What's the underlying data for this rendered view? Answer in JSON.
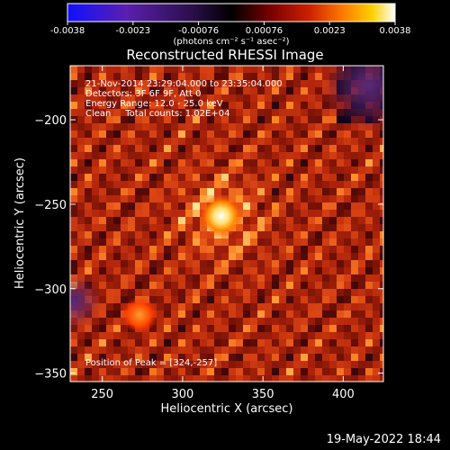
{
  "chart_data": {
    "type": "heatmap",
    "title": "Reconstructed RHESSI Image",
    "xlabel": "Heliocentric X (arcsec)",
    "ylabel": "Heliocentric Y (arcsec)",
    "xlim": [
      230,
      425
    ],
    "ylim": [
      -355,
      -168
    ],
    "xticks": [
      250,
      300,
      350,
      400
    ],
    "yticks": [
      -200,
      -250,
      -300,
      -350
    ],
    "colorbar": {
      "ticks": [
        "-0.0038",
        "-0.0023",
        "-0.00076",
        "0.00076",
        "0.0023",
        "0.0038"
      ],
      "range": [
        -0.0038,
        0.0038
      ],
      "units_line": "(photons cm⁻² s⁻¹ asec⁻²)",
      "colormap": [
        "#1010ff",
        "#5a1fae",
        "#2a0f4a",
        "#000000",
        "#7a0000",
        "#cc2200",
        "#ff7a00",
        "#ffd000",
        "#ffffff"
      ]
    },
    "peak": {
      "x": 324,
      "y": -257
    },
    "annotations": [
      "21-Nov-2014 23:29:04.000 to 23:35:04.000",
      "Detectors: 3F 6F 9F, Att 0",
      "Energy Range: 12.0 - 25.0 keV",
      "Clean     Total counts: 1.02E+04"
    ],
    "peak_label": "Position of Peak = [324,-257]"
  },
  "footer_date": "19-May-2022 18:44"
}
